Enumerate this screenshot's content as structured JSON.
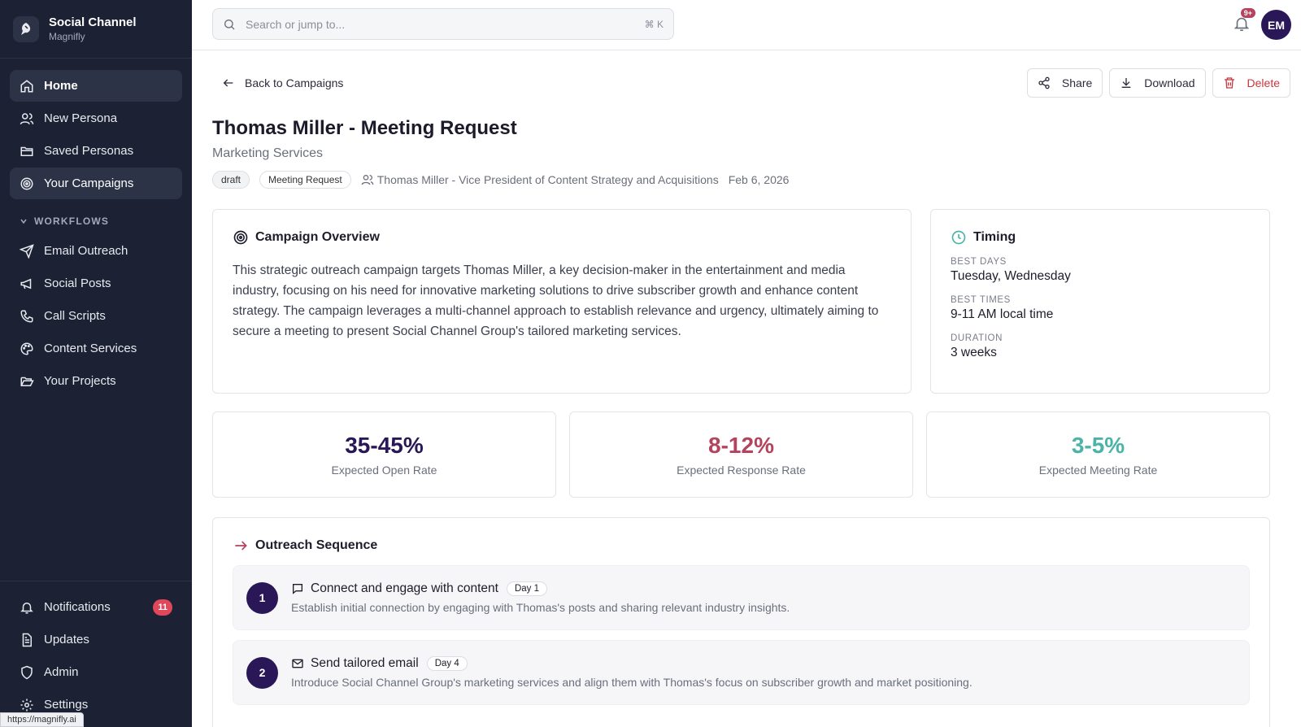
{
  "brand": {
    "name": "Social Channel",
    "sub": "Magnifly"
  },
  "nav": {
    "items": [
      {
        "label": "Home"
      },
      {
        "label": "New Persona"
      },
      {
        "label": "Saved Personas"
      },
      {
        "label": "Your Campaigns"
      }
    ],
    "section": "WORKFLOWS",
    "workflows": [
      {
        "label": "Email Outreach"
      },
      {
        "label": "Social Posts"
      },
      {
        "label": "Call Scripts"
      },
      {
        "label": "Content Services"
      },
      {
        "label": "Your Projects"
      }
    ],
    "bottom": [
      {
        "label": "Notifications",
        "count": "11"
      },
      {
        "label": "Updates"
      },
      {
        "label": "Admin"
      },
      {
        "label": "Settings"
      }
    ]
  },
  "status_url": "https://magnifly.ai",
  "search": {
    "placeholder": "Search or jump to...",
    "shortcut": "⌘ K"
  },
  "topbar": {
    "bell_badge": "9+",
    "avatar": "EM"
  },
  "back_label": "Back to Campaigns",
  "actions": {
    "share": "Share",
    "download": "Download",
    "delete": "Delete"
  },
  "campaign": {
    "title": "Thomas Miller - Meeting Request",
    "subtitle": "Marketing Services",
    "status": "draft",
    "type": "Meeting Request",
    "persona": "Thomas Miller - Vice President of Content Strategy and Acquisitions",
    "date": "Feb 6, 2026"
  },
  "overview": {
    "heading": "Campaign Overview",
    "text": "This strategic outreach campaign targets Thomas Miller, a key decision-maker in the entertainment and media industry, focusing on his need for innovative marketing solutions to drive subscriber growth and enhance content strategy. The campaign leverages a multi-channel approach to establish relevance and urgency, ultimately aiming to secure a meeting to present Social Channel Group's tailored marketing services."
  },
  "timing": {
    "heading": "Timing",
    "best_days_label": "BEST DAYS",
    "best_days": "Tuesday, Wednesday",
    "best_times_label": "BEST TIMES",
    "best_times": "9-11 AM local time",
    "duration_label": "DURATION",
    "duration": "3 weeks"
  },
  "stats": [
    {
      "value": "35-45%",
      "label": "Expected Open Rate",
      "color": "#2a1757"
    },
    {
      "value": "8-12%",
      "label": "Expected Response Rate",
      "color": "#b4435e"
    },
    {
      "value": "3-5%",
      "label": "Expected Meeting Rate",
      "color": "#4bb3a8"
    }
  ],
  "sequence": {
    "heading": "Outreach Sequence",
    "steps": [
      {
        "num": "1",
        "icon": "message-icon",
        "title": "Connect and engage with content",
        "day": "Day 1",
        "desc": "Establish initial connection by engaging with Thomas's posts and sharing relevant industry insights."
      },
      {
        "num": "2",
        "icon": "mail-icon",
        "title": "Send tailored email",
        "day": "Day 4",
        "desc": "Introduce Social Channel Group's marketing services and align them with Thomas's focus on subscriber growth and market positioning."
      }
    ]
  }
}
